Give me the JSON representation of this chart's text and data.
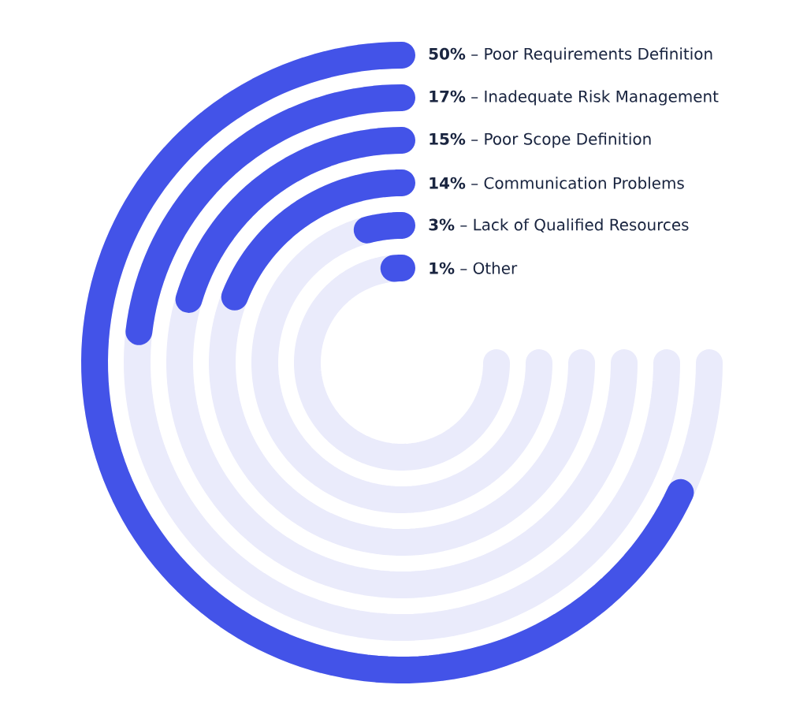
{
  "chart_data": {
    "type": "other",
    "color": "#4353e8",
    "categories": [
      "– Poor Requirements Definition",
      "– Inadequate Risk Management",
      "– Poor Scope Definition",
      "– Communication Problems",
      "– Lack of Qualified Resources",
      "– Other"
    ],
    "values": [
      50,
      17,
      15,
      14,
      3,
      1
    ],
    "value_labels": [
      "50%",
      "17%",
      "15%",
      "14%",
      "3%",
      "1%"
    ]
  }
}
